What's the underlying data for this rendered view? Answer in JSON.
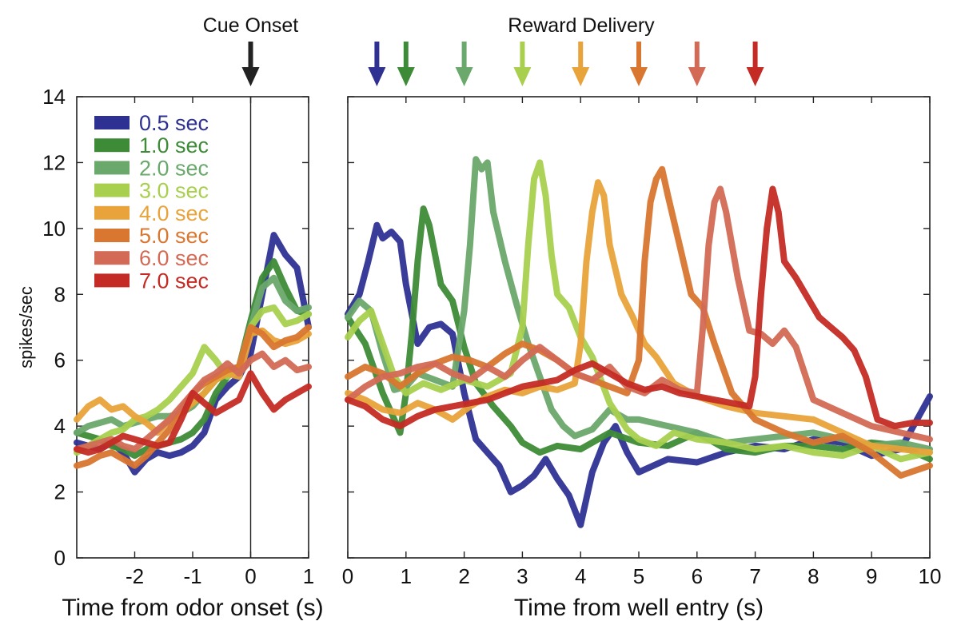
{
  "chart_data": {
    "type": "line",
    "ylabel": "spikes/sec",
    "ylim": [
      0,
      14
    ],
    "yticks": [
      "0",
      "2",
      "4",
      "6",
      "8",
      "10",
      "12",
      "14"
    ],
    "grid": false,
    "legend_position": "top-left",
    "annotations": {
      "cue": "Cue Onset",
      "reward": "Reward Delivery",
      "reward_times": [
        0.5,
        1.0,
        2.0,
        3.0,
        4.0,
        5.0,
        6.0,
        7.0
      ]
    },
    "panels": [
      {
        "id": "odor",
        "xlabel": "Time from odor onset (s)",
        "xlim": [
          -3,
          1
        ],
        "xticks": [
          "-2",
          "-1",
          "0",
          "1"
        ],
        "x": [
          -3.0,
          -2.8,
          -2.6,
          -2.4,
          -2.2,
          -2.0,
          -1.8,
          -1.6,
          -1.4,
          -1.2,
          -1.0,
          -0.8,
          -0.6,
          -0.4,
          -0.2,
          0.0,
          0.2,
          0.4,
          0.6,
          0.8,
          1.0
        ],
        "series": [
          {
            "name": "0.5 sec",
            "color": "#2e3192",
            "values": [
              3.5,
              3.4,
              3.3,
              3.5,
              3.2,
              2.6,
              3.0,
              3.2,
              3.1,
              3.2,
              3.4,
              3.8,
              4.8,
              5.2,
              5.5,
              6.2,
              8.0,
              9.8,
              9.2,
              8.8,
              7.0
            ]
          },
          {
            "name": "1.0 sec",
            "color": "#3d8b37",
            "values": [
              3.8,
              3.7,
              3.6,
              3.4,
              3.3,
              3.1,
              3.3,
              3.4,
              3.5,
              3.6,
              3.8,
              4.2,
              5.0,
              5.5,
              5.8,
              7.2,
              8.5,
              9.0,
              8.2,
              7.5,
              7.4
            ]
          },
          {
            "name": "2.0 sec",
            "color": "#6aa86b",
            "values": [
              3.8,
              4.0,
              4.1,
              4.2,
              4.0,
              4.1,
              4.2,
              4.3,
              4.3,
              4.4,
              4.6,
              5.0,
              5.4,
              5.7,
              5.8,
              7.0,
              8.2,
              8.5,
              7.8,
              7.5,
              7.6
            ]
          },
          {
            "name": "3.0 sec",
            "color": "#a8d04e",
            "values": [
              3.2,
              3.4,
              3.6,
              3.8,
              3.9,
              4.2,
              4.3,
              4.5,
              4.8,
              5.2,
              5.6,
              6.4,
              6.0,
              5.5,
              5.8,
              7.0,
              7.5,
              7.6,
              7.1,
              7.2,
              7.4
            ]
          },
          {
            "name": "4.0 sec",
            "color": "#e8a33a",
            "values": [
              4.2,
              4.6,
              4.8,
              4.5,
              4.6,
              4.3,
              4.1,
              3.8,
              4.2,
              4.4,
              4.7,
              5.0,
              5.4,
              5.6,
              5.5,
              6.8,
              6.9,
              6.6,
              6.5,
              6.6,
              6.8
            ]
          },
          {
            "name": "5.0 sec",
            "color": "#d9762f",
            "values": [
              2.8,
              2.9,
              3.1,
              3.2,
              3.0,
              2.8,
              3.1,
              3.5,
              3.9,
              4.5,
              5.0,
              5.3,
              5.5,
              5.7,
              5.8,
              7.0,
              6.8,
              6.4,
              6.6,
              6.7,
              7.0
            ]
          },
          {
            "name": "6.0 sec",
            "color": "#d36a55",
            "values": [
              3.3,
              3.4,
              3.5,
              3.6,
              3.4,
              3.3,
              3.6,
              3.9,
              4.2,
              4.6,
              5.0,
              5.4,
              5.6,
              5.9,
              5.6,
              6.0,
              6.2,
              5.8,
              6.0,
              5.7,
              5.8
            ]
          },
          {
            "name": "7.0 sec",
            "color": "#c42b24",
            "values": [
              3.3,
              3.2,
              3.3,
              3.5,
              3.7,
              3.6,
              3.5,
              3.4,
              3.5,
              4.2,
              5.0,
              4.7,
              4.4,
              4.6,
              4.8,
              5.6,
              5.0,
              4.5,
              4.8,
              5.0,
              5.2
            ]
          }
        ]
      },
      {
        "id": "well",
        "xlabel": "Time from well entry (s)",
        "xlim": [
          0,
          10
        ],
        "xticks": [
          "0",
          "1",
          "2",
          "3",
          "4",
          "5",
          "6",
          "7",
          "8",
          "9",
          "10"
        ],
        "series": [
          {
            "name": "0.5 sec",
            "color": "#2e3192",
            "x": [
              0,
              0.2,
              0.35,
              0.5,
              0.6,
              0.75,
              0.9,
              1.0,
              1.2,
              1.4,
              1.6,
              1.8,
              2.0,
              2.2,
              2.4,
              2.6,
              2.8,
              3.0,
              3.2,
              3.4,
              3.6,
              3.8,
              4.0,
              4.2,
              4.4,
              4.6,
              4.8,
              5.0,
              5.5,
              6.0,
              6.5,
              7.0,
              7.5,
              8.0,
              8.5,
              9.0,
              9.5,
              10.0
            ],
            "values": [
              7.4,
              8.0,
              9.0,
              10.1,
              9.7,
              9.9,
              9.6,
              8.3,
              6.5,
              7.0,
              7.1,
              6.8,
              5.0,
              3.6,
              3.2,
              2.8,
              2.0,
              2.2,
              2.5,
              3.0,
              2.4,
              1.9,
              1.0,
              2.6,
              3.5,
              4.0,
              3.2,
              2.6,
              3.0,
              2.9,
              3.2,
              3.4,
              3.3,
              3.6,
              3.5,
              3.1,
              3.3,
              4.9
            ]
          },
          {
            "name": "1.0 sec",
            "color": "#3d8b37",
            "x": [
              0,
              0.3,
              0.6,
              0.9,
              1.0,
              1.1,
              1.2,
              1.3,
              1.4,
              1.6,
              1.8,
              2.0,
              2.2,
              2.5,
              2.8,
              3.0,
              3.3,
              3.6,
              4.0,
              4.5,
              5.0,
              5.5,
              6.0,
              6.5,
              7.0,
              7.5,
              8.0,
              8.5,
              9.0,
              9.5,
              10.0
            ],
            "values": [
              7.3,
              6.5,
              5.0,
              3.8,
              5.0,
              6.8,
              9.0,
              10.6,
              10.1,
              8.3,
              7.8,
              6.4,
              5.3,
              4.6,
              4.0,
              3.5,
              3.2,
              3.4,
              3.3,
              3.8,
              3.5,
              3.4,
              3.8,
              3.3,
              3.2,
              3.4,
              3.4,
              3.3,
              3.5,
              3.4,
              3.0
            ]
          },
          {
            "name": "2.0 sec",
            "color": "#6aa86b",
            "x": [
              0,
              0.2,
              0.4,
              0.6,
              0.8,
              1.0,
              1.2,
              1.5,
              1.8,
              2.0,
              2.1,
              2.2,
              2.3,
              2.4,
              2.5,
              2.7,
              2.9,
              3.1,
              3.3,
              3.5,
              3.7,
              3.9,
              4.2,
              4.5,
              4.8,
              5.0,
              5.5,
              6.0,
              6.5,
              7.0,
              7.5,
              8.0,
              8.5,
              9.0,
              9.5,
              10.0
            ],
            "values": [
              7.3,
              7.8,
              7.5,
              6.2,
              5.1,
              5.2,
              5.6,
              5.4,
              5.2,
              7.5,
              9.5,
              12.1,
              11.8,
              12.0,
              10.5,
              9.0,
              7.7,
              6.5,
              5.5,
              4.5,
              4.0,
              3.7,
              3.9,
              4.5,
              4.2,
              4.2,
              4.0,
              3.8,
              3.5,
              3.6,
              3.7,
              3.8,
              3.6,
              3.4,
              3.5,
              3.3
            ]
          },
          {
            "name": "3.0 sec",
            "color": "#a8d04e",
            "x": [
              0,
              0.2,
              0.4,
              0.6,
              0.8,
              1.0,
              1.3,
              1.6,
              2.0,
              2.4,
              2.8,
              3.0,
              3.1,
              3.2,
              3.3,
              3.4,
              3.5,
              3.6,
              3.8,
              4.0,
              4.2,
              4.5,
              4.8,
              5.0,
              5.3,
              5.6,
              6.0,
              6.5,
              7.0,
              7.5,
              8.0,
              8.5,
              9.0,
              9.5,
              10.0
            ],
            "values": [
              6.7,
              7.2,
              7.5,
              6.5,
              5.5,
              5.0,
              5.3,
              5.1,
              5.4,
              5.2,
              5.6,
              7.0,
              9.5,
              11.5,
              12.0,
              11.0,
              9.2,
              8.0,
              7.6,
              6.7,
              6.1,
              4.7,
              3.9,
              3.6,
              3.4,
              3.8,
              3.6,
              3.5,
              3.3,
              3.4,
              3.2,
              3.1,
              3.4,
              3.0,
              3.2
            ]
          },
          {
            "name": "4.0 sec",
            "color": "#e8a33a",
            "x": [
              0,
              0.3,
              0.6,
              0.9,
              1.2,
              1.5,
              1.8,
              2.1,
              2.4,
              2.7,
              3.0,
              3.3,
              3.6,
              3.9,
              4.0,
              4.1,
              4.2,
              4.3,
              4.4,
              4.5,
              4.7,
              4.9,
              5.1,
              5.3,
              5.6,
              6.0,
              6.5,
              7.0,
              7.5,
              8.0,
              8.5,
              9.0,
              9.5,
              10.0
            ],
            "values": [
              5.0,
              4.8,
              4.5,
              4.4,
              4.7,
              4.5,
              4.2,
              4.6,
              4.9,
              5.1,
              5.0,
              5.2,
              5.1,
              5.3,
              6.5,
              9.0,
              10.5,
              11.4,
              11.0,
              9.5,
              8.0,
              7.3,
              6.5,
              6.1,
              5.3,
              4.9,
              4.6,
              4.4,
              4.3,
              4.2,
              3.8,
              3.4,
              3.3,
              3.2
            ]
          },
          {
            "name": "5.0 sec",
            "color": "#d9762f",
            "x": [
              0,
              0.3,
              0.6,
              0.9,
              1.2,
              1.5,
              1.8,
              2.1,
              2.4,
              2.7,
              3.0,
              3.3,
              3.6,
              3.9,
              4.2,
              4.5,
              4.8,
              5.0,
              5.1,
              5.2,
              5.3,
              5.4,
              5.5,
              5.7,
              5.9,
              6.1,
              6.3,
              6.6,
              7.0,
              7.5,
              8.0,
              8.5,
              9.0,
              9.5,
              10.0
            ],
            "values": [
              5.5,
              5.8,
              5.6,
              5.2,
              5.6,
              5.9,
              6.1,
              6.0,
              5.8,
              6.2,
              6.5,
              6.3,
              6.0,
              5.6,
              5.4,
              5.2,
              5.0,
              6.0,
              9.0,
              10.8,
              11.5,
              11.8,
              11.0,
              9.5,
              8.0,
              7.6,
              6.5,
              5.0,
              4.2,
              3.8,
              3.5,
              3.7,
              3.2,
              2.5,
              2.8
            ]
          },
          {
            "name": "6.0 sec",
            "color": "#d36a55",
            "x": [
              0,
              0.3,
              0.6,
              0.9,
              1.2,
              1.5,
              1.8,
              2.1,
              2.4,
              2.7,
              3.0,
              3.3,
              3.6,
              3.9,
              4.2,
              4.5,
              4.8,
              5.1,
              5.4,
              5.7,
              6.0,
              6.1,
              6.2,
              6.3,
              6.4,
              6.5,
              6.7,
              6.9,
              7.1,
              7.3,
              7.5,
              7.7,
              8.0,
              8.5,
              9.0,
              9.5,
              10.0
            ],
            "values": [
              4.8,
              5.2,
              5.5,
              5.6,
              5.8,
              5.9,
              5.6,
              5.4,
              5.8,
              5.5,
              6.0,
              6.4,
              6.0,
              5.6,
              5.4,
              5.8,
              5.2,
              5.0,
              5.4,
              5.1,
              5.0,
              7.0,
              9.5,
              10.8,
              11.2,
              10.5,
              8.5,
              6.9,
              6.8,
              6.5,
              6.9,
              6.4,
              4.8,
              4.4,
              4.0,
              3.8,
              3.6
            ]
          },
          {
            "name": "7.0 sec",
            "color": "#c42b24",
            "x": [
              0,
              0.3,
              0.6,
              0.9,
              1.2,
              1.5,
              1.8,
              2.1,
              2.4,
              2.7,
              3.0,
              3.3,
              3.6,
              3.9,
              4.2,
              4.5,
              4.8,
              5.1,
              5.4,
              5.7,
              6.0,
              6.3,
              6.6,
              6.9,
              7.0,
              7.1,
              7.2,
              7.3,
              7.4,
              7.5,
              7.7,
              7.9,
              8.1,
              8.3,
              8.5,
              8.7,
              8.9,
              9.1,
              9.4,
              9.7,
              10.0
            ],
            "values": [
              4.8,
              4.6,
              4.2,
              4.0,
              4.3,
              4.5,
              4.6,
              4.7,
              4.8,
              5.0,
              5.2,
              5.3,
              5.4,
              5.7,
              5.9,
              5.6,
              5.3,
              5.1,
              5.2,
              5.0,
              4.9,
              4.8,
              4.7,
              4.6,
              5.5,
              8.0,
              10.0,
              11.2,
              10.5,
              9.0,
              8.5,
              7.9,
              7.3,
              7.0,
              6.7,
              6.3,
              5.5,
              4.2,
              4.0,
              4.1,
              4.1
            ]
          }
        ]
      }
    ]
  }
}
